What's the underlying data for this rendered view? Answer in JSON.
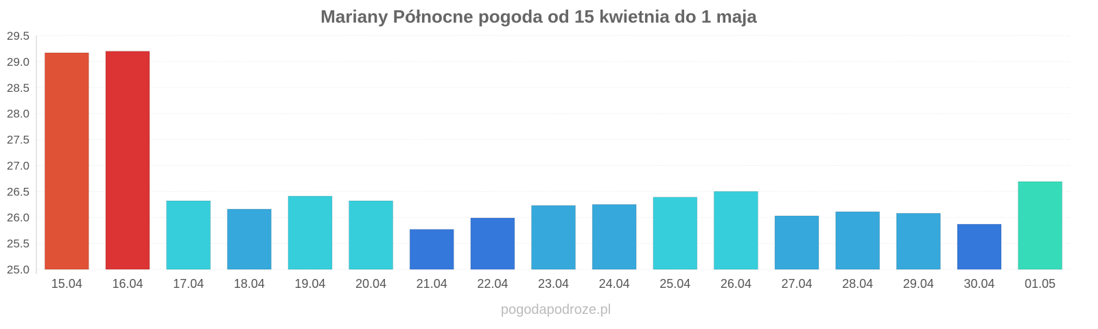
{
  "chart_data": {
    "type": "bar",
    "title": "Mariany Północne pogoda od 15 kwietnia do 1 maja",
    "xlabel": "",
    "ylabel": "",
    "ylim": [
      25.0,
      29.5
    ],
    "yticks": [
      "25.0",
      "25.5",
      "26.0",
      "26.5",
      "27.0",
      "27.5",
      "28.0",
      "28.5",
      "29.0",
      "29.5"
    ],
    "grid": true,
    "categories": [
      "15.04",
      "16.04",
      "17.04",
      "18.04",
      "19.04",
      "20.04",
      "21.04",
      "22.04",
      "23.04",
      "24.04",
      "25.04",
      "26.04",
      "27.04",
      "28.04",
      "29.04",
      "30.04",
      "01.05"
    ],
    "values": [
      29.17,
      29.2,
      26.32,
      26.16,
      26.41,
      26.32,
      25.77,
      25.99,
      26.23,
      26.25,
      26.39,
      26.5,
      26.03,
      26.11,
      26.08,
      25.87,
      26.69
    ],
    "colors": [
      "#e05236",
      "#dc3434",
      "#36cedb",
      "#36a8db",
      "#36cedb",
      "#36cedb",
      "#3578db",
      "#3578db",
      "#36a8db",
      "#36a8db",
      "#36cedb",
      "#36cedb",
      "#36a8db",
      "#36a8db",
      "#36a8db",
      "#3578db",
      "#36dbb9"
    ]
  },
  "watermark": "pogodapodroze.pl"
}
